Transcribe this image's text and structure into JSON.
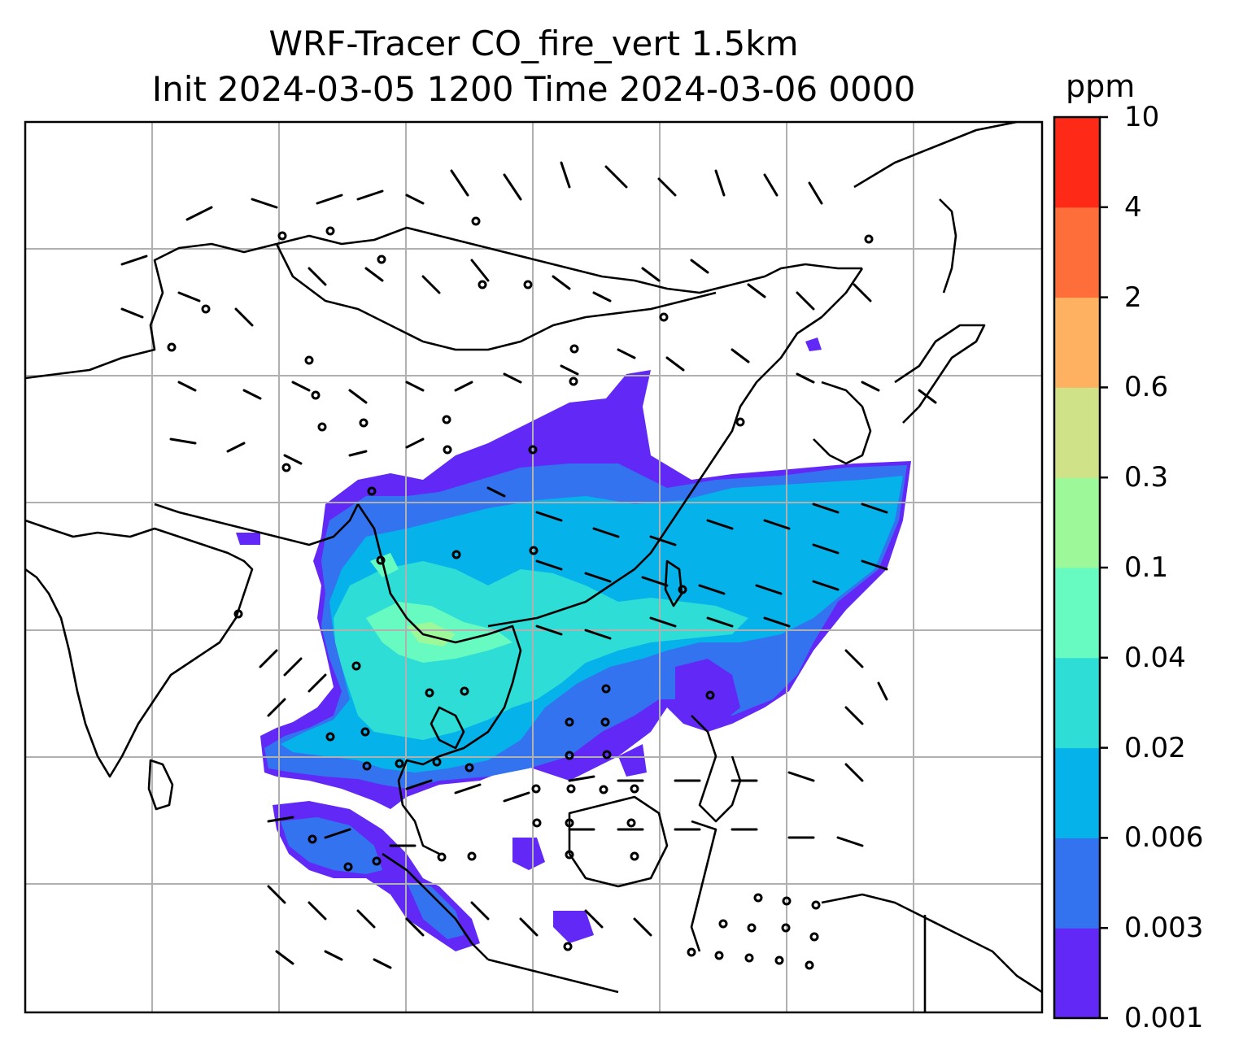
{
  "title": {
    "line1": "WRF-Tracer CO_fire_vert 1.5km",
    "line2": "Init 2024-03-05 1200 Time 2024-03-06 0000"
  },
  "colorbar": {
    "unit": "ppm",
    "levels": [
      "0.001",
      "0.003",
      "0.006",
      "0.02",
      "0.04",
      "0.1",
      "0.3",
      "0.6",
      "2",
      "4",
      "10"
    ],
    "colors": [
      "#6229f6",
      "#3373f0",
      "#05b3ea",
      "#2dddd6",
      "#68fbc1",
      "#9cf899",
      "#d0e288",
      "#feb261",
      "#fe6e3a",
      "#fe2a17"
    ]
  },
  "map": {
    "gridlines": true,
    "gridline_color": "#b0b0b0",
    "coastline_color": "#000000",
    "barb_color": "#000000"
  }
}
